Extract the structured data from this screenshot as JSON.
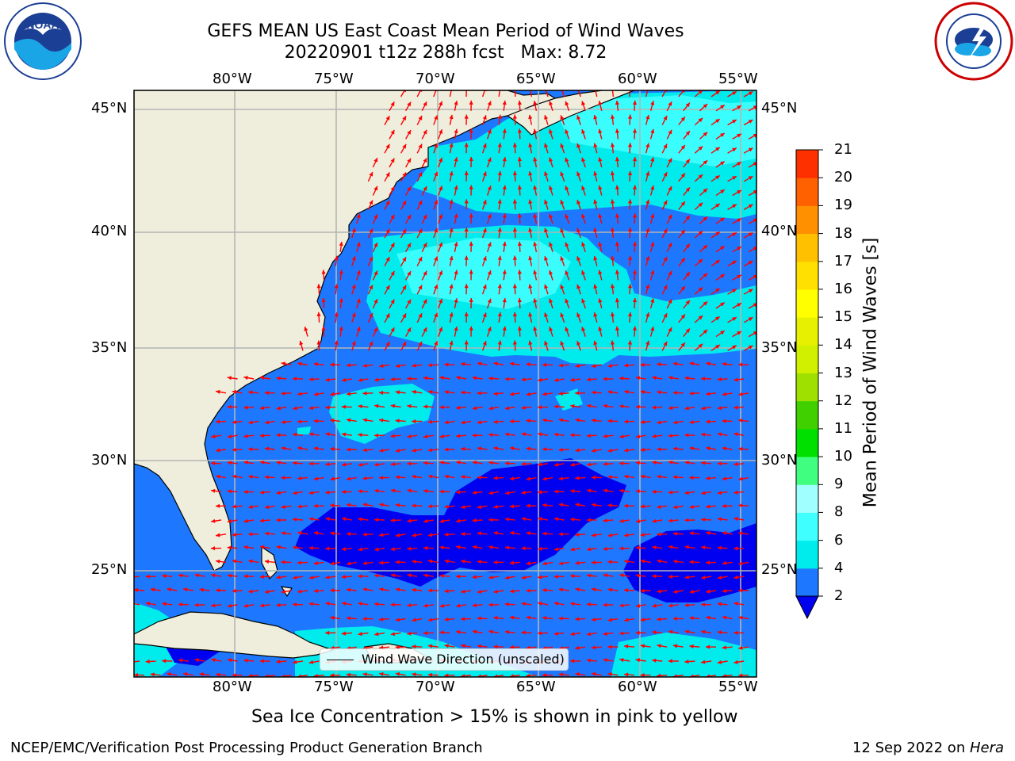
{
  "title": {
    "line1": "GEFS MEAN US East Coast Mean Period of Wind Waves",
    "line2": "20220901 t12z 288h fcst   Max: 8.72"
  },
  "logos": {
    "left": "NOAA",
    "right": "NATIONAL WEATHER SERVICE"
  },
  "map": {
    "lon_labels": [
      "80°W",
      "75°W",
      "70°W",
      "65°W",
      "60°W",
      "55°W"
    ],
    "lat_labels": [
      "45°N",
      "40°N",
      "35°N",
      "30°N",
      "25°N"
    ],
    "extent": {
      "lon": [
        -85,
        -54.3
      ],
      "lat": [
        20,
        46
      ]
    },
    "legend_text": "Wind Wave Direction (unscaled)",
    "vector_color": "#ff0000",
    "land_color": "#efeedc",
    "grid_color": "#b4b4b4"
  },
  "colorbar": {
    "label": "Mean Period of Wind Waves [s]",
    "ticks": [
      "2",
      "4",
      "6",
      "8",
      "9",
      "10",
      "11",
      "12",
      "13",
      "14",
      "15",
      "16",
      "17",
      "18",
      "19",
      "20",
      "21"
    ],
    "colors": [
      "#1e78ff",
      "#00ecec",
      "#40ffff",
      "#a0ffff",
      "#40ff80",
      "#00e000",
      "#40d000",
      "#a0e000",
      "#d0f000",
      "#e6f000",
      "#ffff00",
      "#ffe000",
      "#ffc000",
      "#ff9000",
      "#ff6000",
      "#ff3000",
      "#ff0000"
    ],
    "under_color": "#0000f0"
  },
  "subtitle": "Sea Ice Concentration > 15% is shown in pink to yellow",
  "footer": {
    "left": "NCEP/EMC/Verification Post Processing Product Generation Branch",
    "right_date": "12 Sep 2022 on ",
    "right_machine": "Hera"
  }
}
